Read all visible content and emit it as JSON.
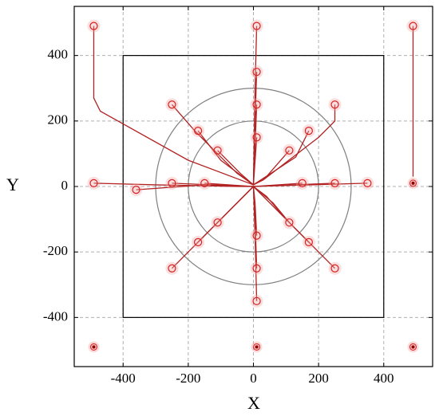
{
  "chart_data": {
    "type": "line",
    "xlabel": "X",
    "ylabel": "Y",
    "xlim": [
      -550,
      550
    ],
    "ylim": [
      -550,
      550
    ],
    "xticks": [
      -400,
      -200,
      0,
      200,
      400
    ],
    "yticks": [
      -400,
      -200,
      0,
      200,
      400
    ],
    "grid": true,
    "color": "#b22222",
    "boundary": [
      -400,
      400
    ],
    "circle_radii": [
      200,
      300
    ],
    "points": {
      "x": [
        -490,
        10,
        490,
        10,
        10,
        10,
        -250,
        -170,
        -110,
        250,
        170,
        110,
        -490,
        -360,
        -250,
        -150,
        150,
        250,
        350,
        -110,
        -170,
        -250,
        110,
        170,
        250,
        10,
        10,
        10
      ],
      "y": [
        490,
        490,
        490,
        350,
        250,
        150,
        250,
        170,
        110,
        250,
        170,
        110,
        10,
        -10,
        10,
        10,
        10,
        10,
        10,
        -110,
        -170,
        -250,
        -110,
        -170,
        -250,
        -150,
        -250,
        -350
      ]
    },
    "stationary_points": {
      "x": [
        490,
        -490,
        10,
        490
      ],
      "y": [
        10,
        -490,
        -490,
        -490
      ]
    },
    "paths": [
      {
        "x": [
          -490,
          -490,
          -470,
          -200,
          0
        ],
        "y": [
          490,
          270,
          230,
          80,
          5
        ]
      },
      {
        "x": [
          10,
          5,
          0
        ],
        "y": [
          490,
          300,
          5
        ]
      },
      {
        "x": [
          490,
          490
        ],
        "y": [
          490,
          30
        ]
      },
      {
        "x": [
          10,
          5,
          0
        ],
        "y": [
          350,
          200,
          5
        ]
      },
      {
        "x": [
          10,
          5,
          0
        ],
        "y": [
          250,
          120,
          5
        ]
      },
      {
        "x": [
          10,
          0
        ],
        "y": [
          150,
          5
        ]
      },
      {
        "x": [
          -250,
          -180,
          -50,
          0
        ],
        "y": [
          250,
          170,
          40,
          5
        ]
      },
      {
        "x": [
          -170,
          -100,
          0
        ],
        "y": [
          170,
          80,
          5
        ]
      },
      {
        "x": [
          -110,
          -40,
          0
        ],
        "y": [
          110,
          40,
          5
        ]
      },
      {
        "x": [
          250,
          250,
          200,
          30,
          0
        ],
        "y": [
          250,
          200,
          150,
          20,
          5
        ]
      },
      {
        "x": [
          170,
          130,
          0
        ],
        "y": [
          170,
          90,
          5
        ]
      },
      {
        "x": [
          110,
          40,
          0
        ],
        "y": [
          110,
          30,
          5
        ]
      },
      {
        "x": [
          -490,
          -300,
          -50,
          0
        ],
        "y": [
          10,
          5,
          0,
          0
        ]
      },
      {
        "x": [
          -360,
          -150,
          0
        ],
        "y": [
          -10,
          5,
          0
        ]
      },
      {
        "x": [
          -250,
          0
        ],
        "y": [
          10,
          0
        ]
      },
      {
        "x": [
          -150,
          0
        ],
        "y": [
          10,
          0
        ]
      },
      {
        "x": [
          150,
          0
        ],
        "y": [
          10,
          0
        ]
      },
      {
        "x": [
          250,
          0
        ],
        "y": [
          10,
          0
        ]
      },
      {
        "x": [
          350,
          0
        ],
        "y": [
          10,
          0
        ]
      },
      {
        "x": [
          -110,
          0
        ],
        "y": [
          -110,
          0
        ]
      },
      {
        "x": [
          -170,
          0
        ],
        "y": [
          -170,
          0
        ]
      },
      {
        "x": [
          -250,
          0
        ],
        "y": [
          -250,
          0
        ]
      },
      {
        "x": [
          110,
          60,
          0
        ],
        "y": [
          -110,
          -50,
          0
        ]
      },
      {
        "x": [
          170,
          100,
          40,
          0
        ],
        "y": [
          -170,
          -100,
          -30,
          0
        ]
      },
      {
        "x": [
          250,
          0
        ],
        "y": [
          -250,
          0
        ]
      },
      {
        "x": [
          10,
          5,
          0
        ],
        "y": [
          -150,
          -50,
          0
        ]
      },
      {
        "x": [
          10,
          5,
          0
        ],
        "y": [
          -250,
          -100,
          0
        ]
      },
      {
        "x": [
          10,
          5,
          0
        ],
        "y": [
          -350,
          -150,
          0
        ]
      }
    ]
  }
}
